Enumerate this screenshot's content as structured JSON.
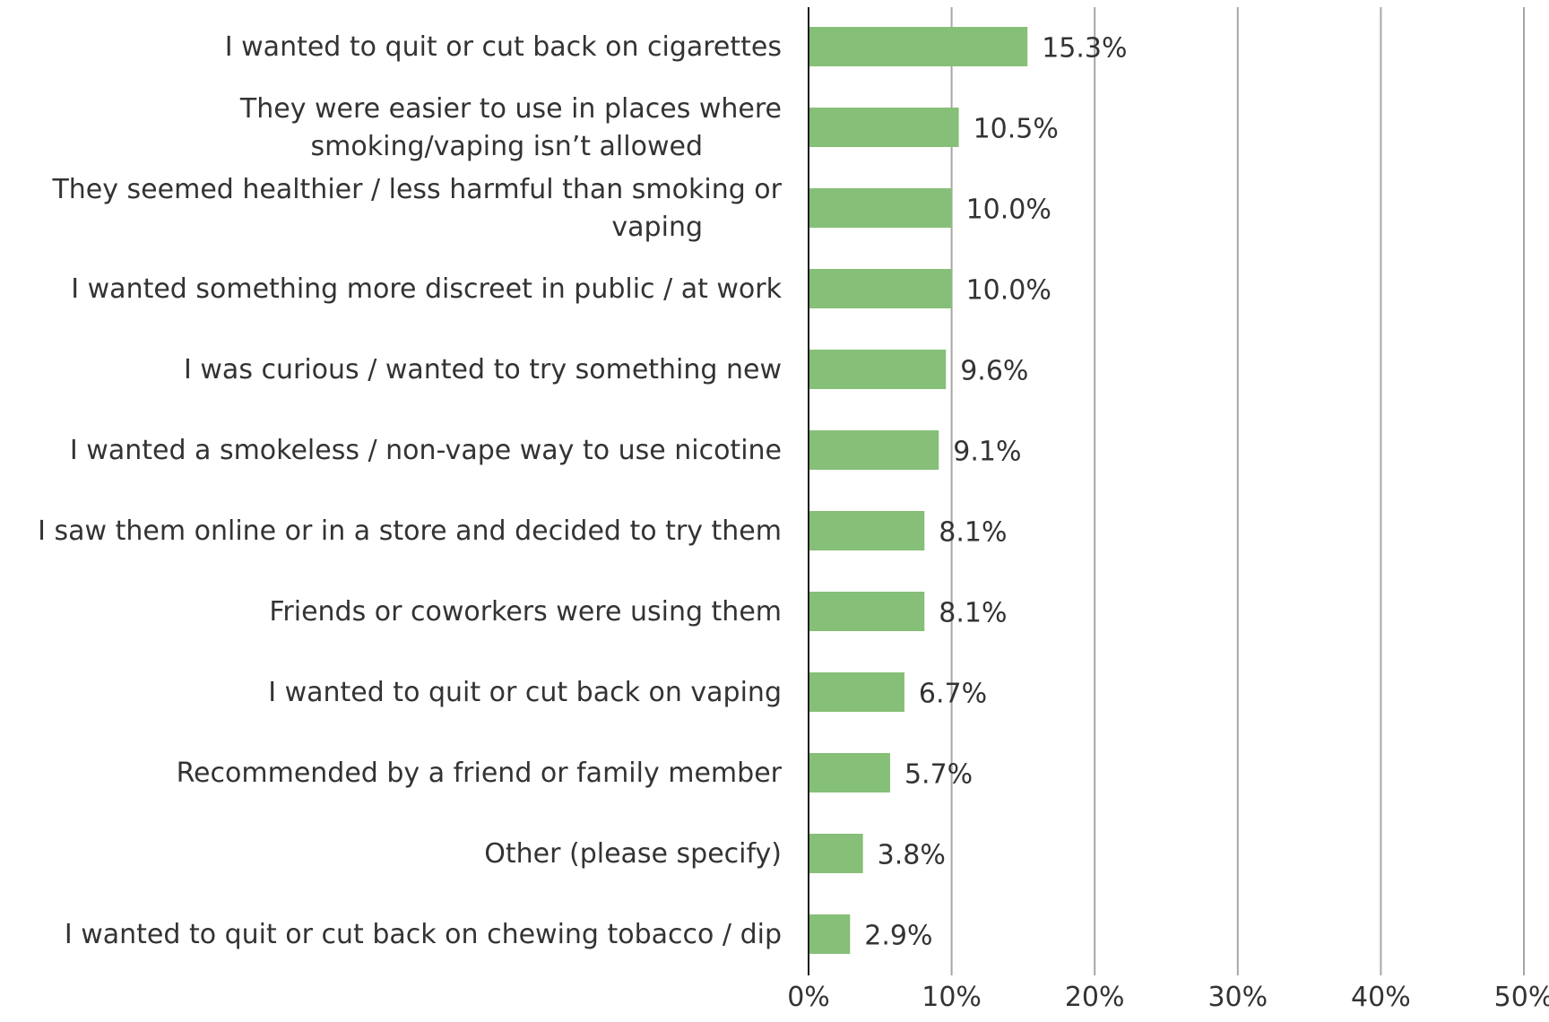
{
  "chart_data": {
    "type": "bar",
    "orientation": "horizontal",
    "title": "",
    "xlabel": "",
    "ylabel": "",
    "categories": [
      "I wanted to quit or cut back on cigarettes",
      "They were easier to use in places where smoking/vaping isn’t allowed",
      "They seemed healthier / less harmful than smoking or vaping",
      "I wanted something more discreet in public / at work",
      "I was curious / wanted to try something new",
      "I wanted a smokeless / non-vape way to use nicotine",
      "I saw them online or in a store and decided to try them",
      "Friends or coworkers were using them",
      "I wanted to quit or cut back on vaping",
      "Recommended by a friend or family member",
      "Other (please specify)",
      "I wanted to quit or cut back on chewing tobacco / dip"
    ],
    "category_lines": [
      [
        "I wanted to quit or cut back on cigarettes"
      ],
      [
        "They were easier to use in places where",
        "smoking/vaping isn’t allowed"
      ],
      [
        "They seemed healthier / less harmful than smoking or",
        "vaping"
      ],
      [
        "I wanted something more discreet in public / at work"
      ],
      [
        "I was curious / wanted to try something new"
      ],
      [
        "I wanted a smokeless / non-vape way to use nicotine"
      ],
      [
        "I saw them online or in a store and decided to try them"
      ],
      [
        "Friends or coworkers were using them"
      ],
      [
        "I wanted to quit or cut back on vaping"
      ],
      [
        "Recommended by a friend or family member"
      ],
      [
        "Other (please specify)"
      ],
      [
        "I wanted to quit or cut back on chewing tobacco / dip"
      ]
    ],
    "values": [
      15.3,
      10.5,
      10.0,
      10.0,
      9.6,
      9.1,
      8.1,
      8.1,
      6.7,
      5.7,
      3.8,
      2.9
    ],
    "data_labels": [
      "15.3%",
      "10.5%",
      "10.0%",
      "10.0%",
      "9.6%",
      "9.1%",
      "8.1%",
      "8.1%",
      "6.7%",
      "5.7%",
      "3.8%",
      "2.9%"
    ],
    "xlim": [
      0,
      50
    ],
    "x_ticks": [
      0,
      10,
      20,
      30,
      40,
      50
    ],
    "x_tick_labels": [
      "0%",
      "10%",
      "20%",
      "30%",
      "40%",
      "50%"
    ],
    "grid": "vertical",
    "legend": "none",
    "bar_color": "#86bf77",
    "gridline_color": "#a6a6a6",
    "axis_color": "#1a1a1a",
    "text_color": "#333333"
  }
}
